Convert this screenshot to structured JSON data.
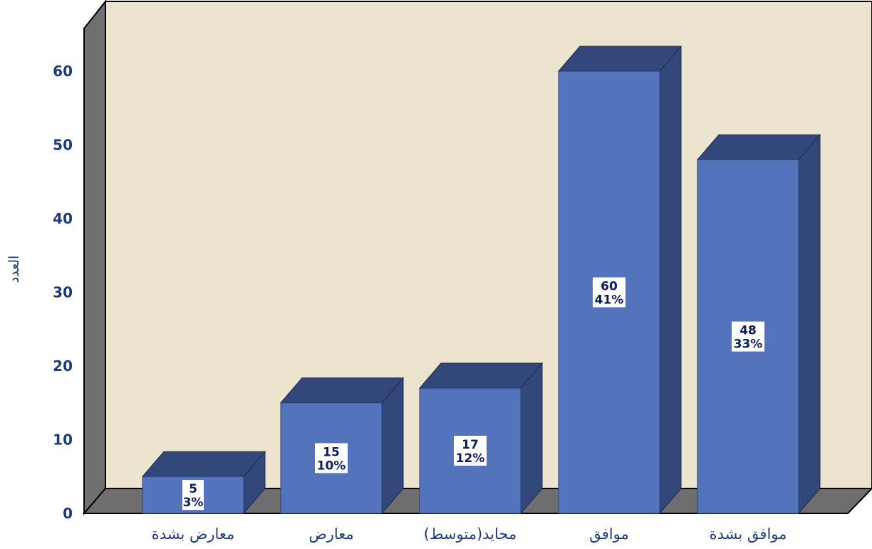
{
  "chart_data": {
    "type": "bar",
    "categories": [
      "معارض بشدة",
      "معارض",
      "محايد(متوسط)",
      "موافق",
      "موافق بشدة"
    ],
    "values": [
      5,
      15,
      17,
      60,
      48
    ],
    "percentages": [
      "3%",
      "10%",
      "12%",
      "41%",
      "33%"
    ],
    "ylabel": "العدد",
    "xlabel": "",
    "title": "",
    "yticks": [
      0,
      10,
      20,
      30,
      40,
      50,
      60
    ],
    "ylim": [
      0,
      66
    ],
    "legend": "none",
    "grid": false,
    "three_d": true,
    "colors": {
      "bar_front": "#5374bd",
      "bar_side": "#33487a",
      "bar_top": "#33487a",
      "back_wall": "#ece4cf",
      "side_wall": "#707070",
      "floor": "#6e6e6e",
      "label_box": "#ffffff",
      "text": "#1f3a7a"
    }
  }
}
